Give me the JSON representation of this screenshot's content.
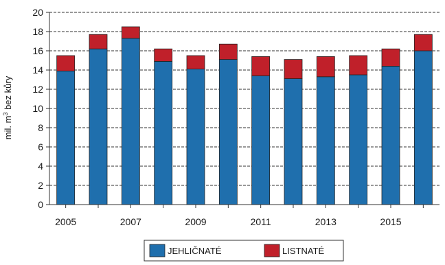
{
  "chart_data": {
    "type": "bar",
    "stacked": true,
    "categories": [
      "2005",
      "2006",
      "2007",
      "2008",
      "2009",
      "2010",
      "2011",
      "2012",
      "2013",
      "2014",
      "2015",
      "2016"
    ],
    "x_tick_labels": [
      "2005",
      "",
      "2007",
      "",
      "2009",
      "",
      "2011",
      "",
      "2013",
      "",
      "2015",
      ""
    ],
    "series": [
      {
        "name": "JEHLIČNATÉ",
        "color": "#1f6fad",
        "values": [
          13.9,
          16.2,
          17.3,
          14.9,
          14.1,
          15.1,
          13.4,
          13.1,
          13.3,
          13.5,
          14.4,
          16.0
        ]
      },
      {
        "name": "LISTNATÉ",
        "color": "#c0202a",
        "values": [
          1.6,
          1.5,
          1.2,
          1.3,
          1.4,
          1.6,
          2.0,
          2.0,
          2.1,
          2.0,
          1.8,
          1.7
        ]
      }
    ],
    "ylabel_main": "mil. m",
    "ylabel_sup": "3",
    "ylabel_rest": " bez kůry",
    "ylim": [
      0,
      20
    ],
    "y_ticks": [
      0,
      2,
      4,
      6,
      8,
      10,
      12,
      14,
      16,
      18,
      20
    ],
    "grid": true,
    "legend_position": "bottom"
  }
}
